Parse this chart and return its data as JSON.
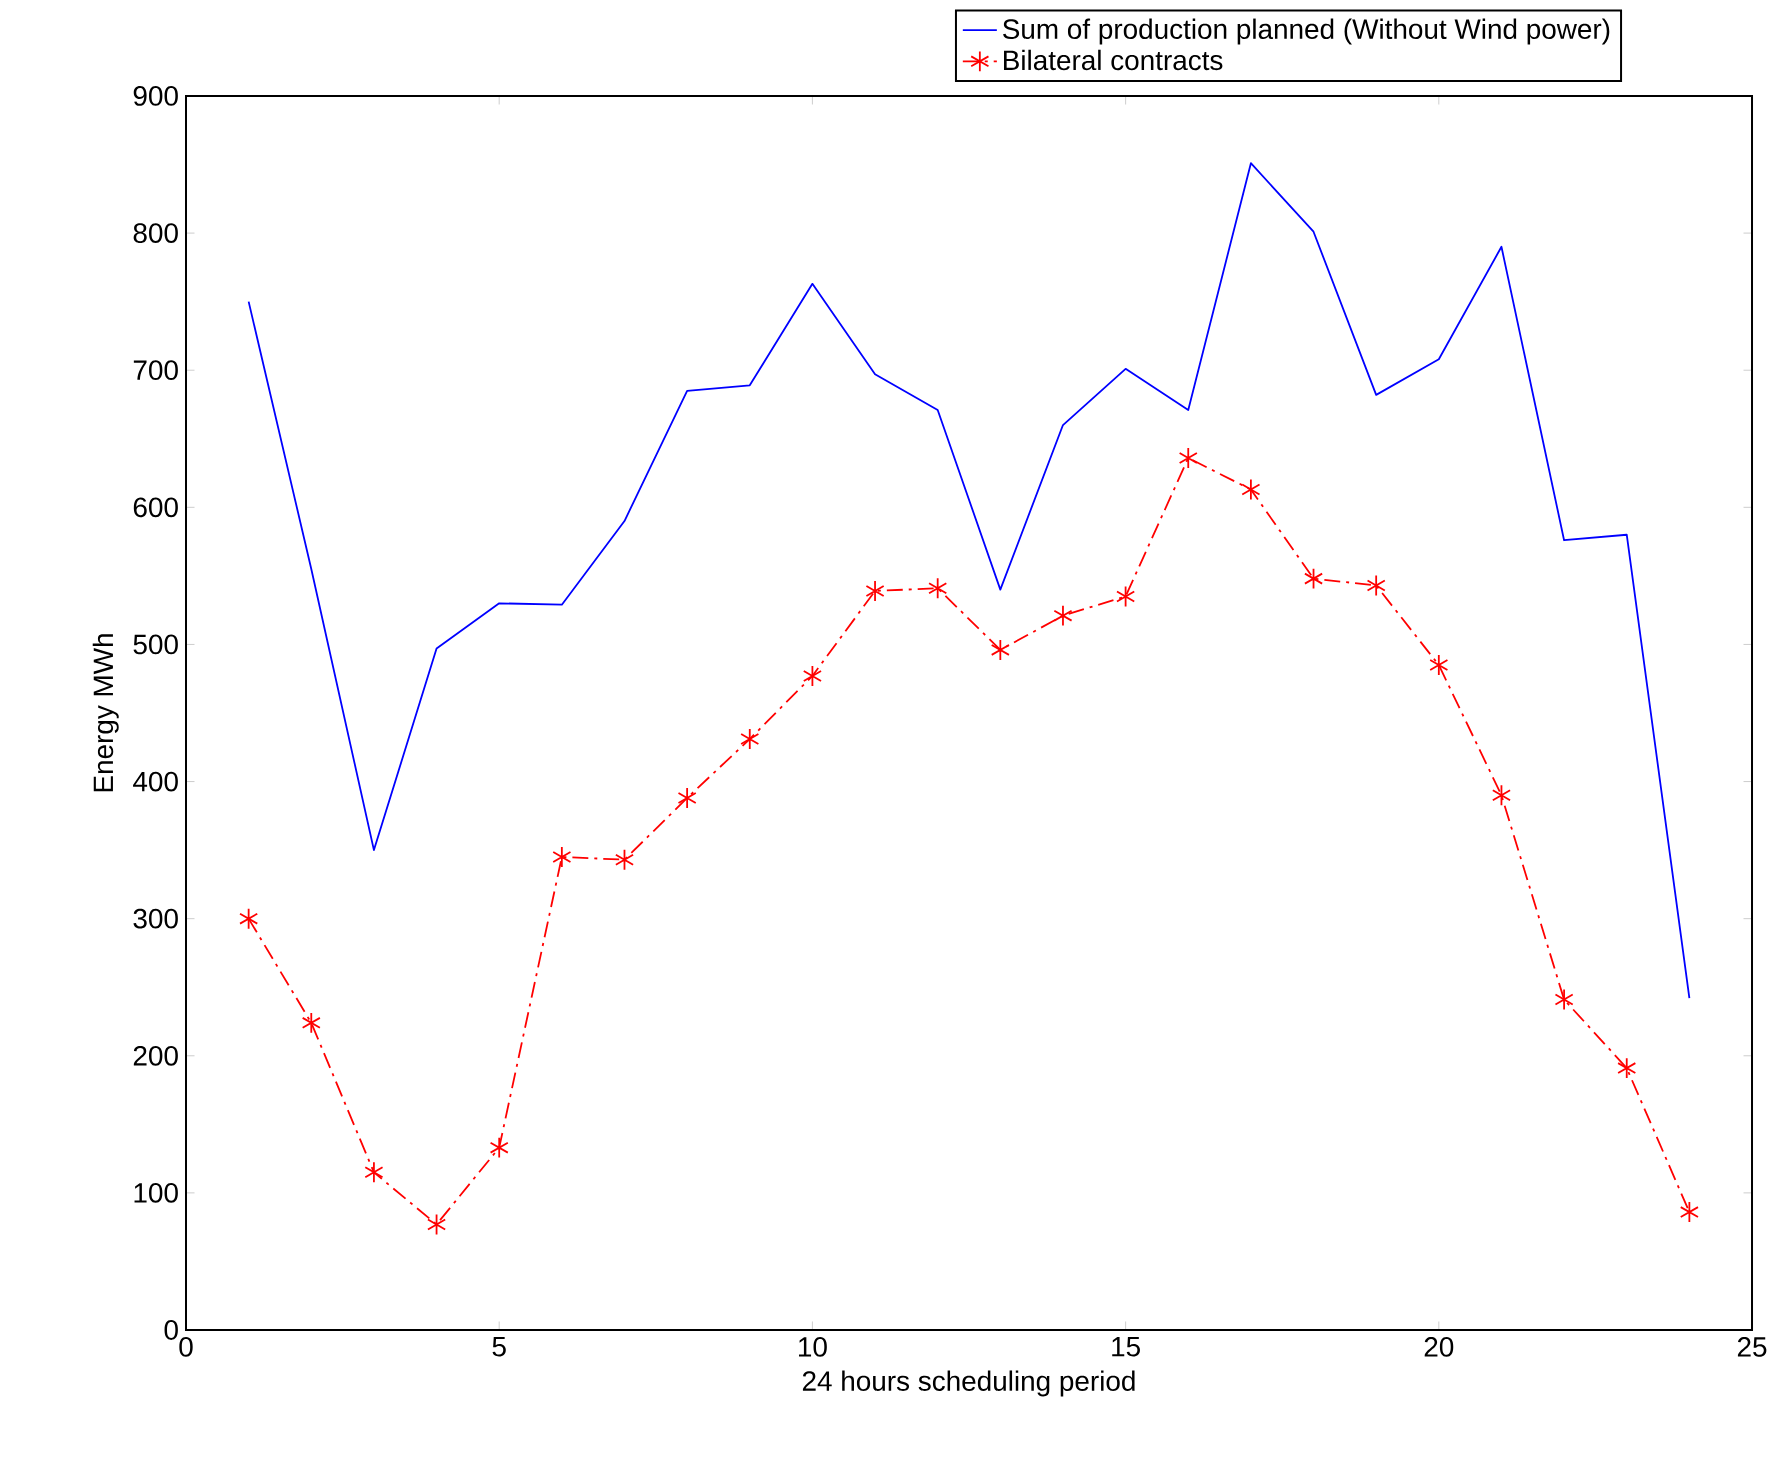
{
  "chart_data": {
    "type": "line",
    "xlabel": "24 hours scheduling period",
    "ylabel": "Energy MWh",
    "x": [
      1,
      2,
      3,
      4,
      5,
      6,
      7,
      8,
      9,
      10,
      11,
      12,
      13,
      14,
      15,
      16,
      17,
      18,
      19,
      20,
      21,
      22,
      23,
      24
    ],
    "series": [
      {
        "name": "Sum of production planned (Without Wind power)",
        "color": "#0000ff",
        "marker": "none",
        "line_style": "solid",
        "values": [
          750,
          555,
          350,
          497,
          530,
          529,
          590,
          685,
          689,
          763,
          697,
          671,
          540,
          660,
          701,
          671,
          851,
          801,
          682,
          708,
          790,
          576,
          580,
          242
        ]
      },
      {
        "name": "Bilateral contracts",
        "color": "#ff0000",
        "marker": "cross",
        "line_style": "dashdot",
        "values": [
          300,
          224,
          115,
          77,
          133,
          345,
          343,
          388,
          431,
          477,
          539,
          541,
          496,
          521,
          535,
          636,
          613,
          548,
          543,
          485,
          390,
          241,
          191,
          86
        ]
      }
    ],
    "xlim": [
      0,
      25
    ],
    "xticks": [
      0,
      5,
      10,
      15,
      20,
      25
    ],
    "ylim": [
      0,
      900
    ],
    "yticks": [
      0,
      100,
      200,
      300,
      400,
      500,
      600,
      700,
      800,
      900
    ],
    "grid": false,
    "legend": "top right"
  }
}
